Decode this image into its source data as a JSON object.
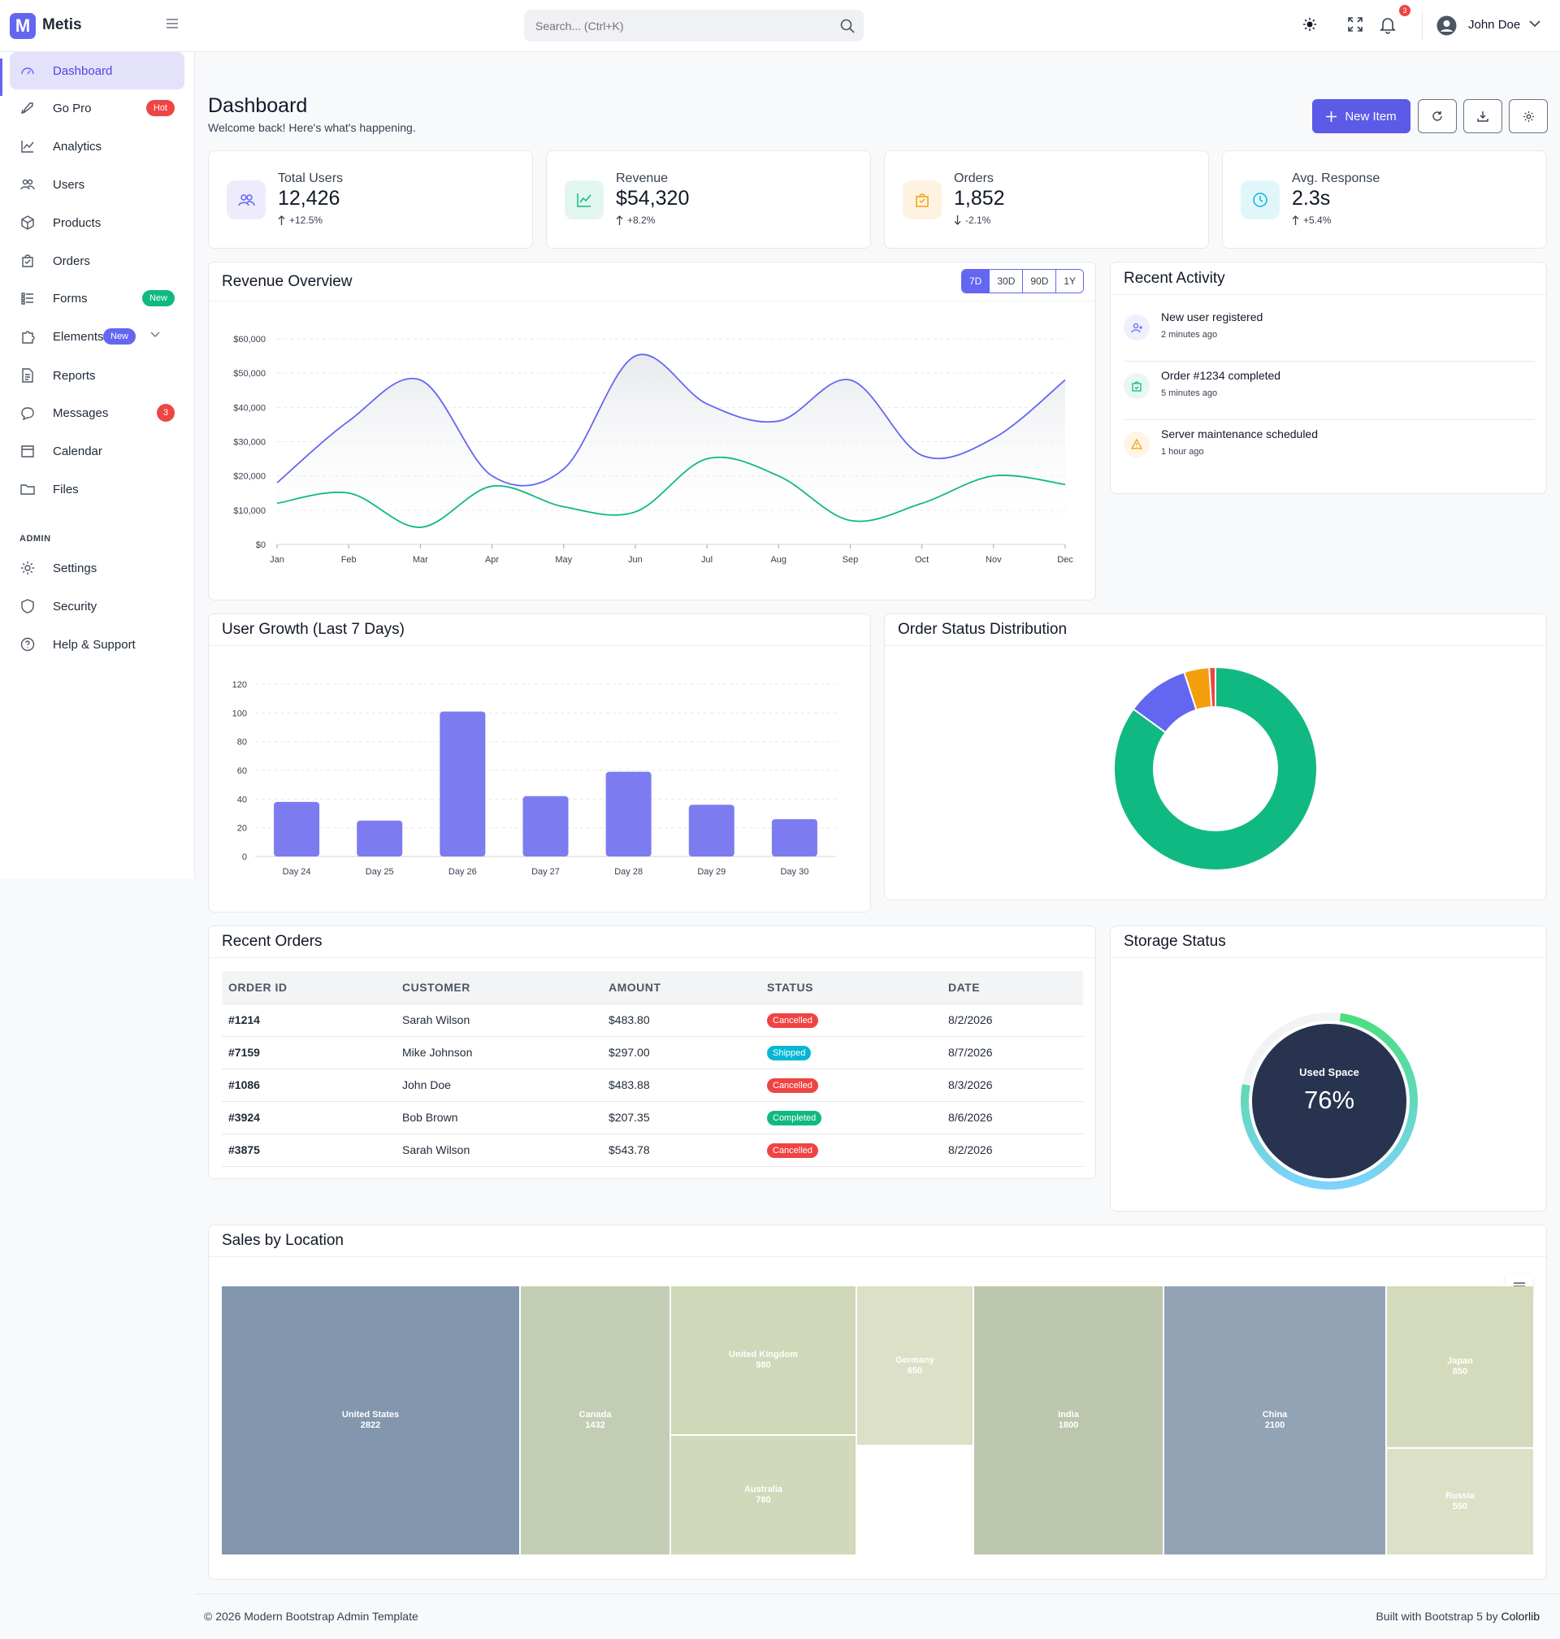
{
  "app": {
    "name": "Metis",
    "logo_letter": "M"
  },
  "search": {
    "placeholder": "Search... (Ctrl+K)"
  },
  "topbar": {
    "notification_count": "3",
    "user_name": "John Doe"
  },
  "sidebar": {
    "items": [
      {
        "label": "Dashboard",
        "icon": "dashboard-icon",
        "active": true
      },
      {
        "label": "Go Pro",
        "icon": "rocket-icon",
        "badge": "Hot"
      },
      {
        "label": "Analytics",
        "icon": "chart-line-icon"
      },
      {
        "label": "Users",
        "icon": "users-icon"
      },
      {
        "label": "Products",
        "icon": "box-icon"
      },
      {
        "label": "Orders",
        "icon": "bag-icon"
      },
      {
        "label": "Forms",
        "icon": "form-icon",
        "badge": "New"
      },
      {
        "label": "Elements",
        "icon": "puzzle-icon",
        "badge": "New"
      },
      {
        "label": "Reports",
        "icon": "document-icon"
      },
      {
        "label": "Messages",
        "icon": "chat-icon",
        "badge": "3"
      },
      {
        "label": "Calendar",
        "icon": "calendar-icon"
      },
      {
        "label": "Files",
        "icon": "folder-icon"
      }
    ],
    "admin_heading": "ADMIN",
    "admin_items": [
      {
        "label": "Settings",
        "icon": "gear-icon"
      },
      {
        "label": "Security",
        "icon": "shield-icon"
      },
      {
        "label": "Help & Support",
        "icon": "help-icon"
      }
    ]
  },
  "page": {
    "title": "Dashboard",
    "subtitle": "Welcome back! Here's what's happening.",
    "new_item_label": "New Item"
  },
  "stats": [
    {
      "label": "Total Users",
      "value": "12,426",
      "change": "+12.5%",
      "direction": "up",
      "color": "#6366f1"
    },
    {
      "label": "Revenue",
      "value": "$54,320",
      "change": "+8.2%",
      "direction": "up",
      "color": "#10b981"
    },
    {
      "label": "Orders",
      "value": "1,852",
      "change": "-2.1%",
      "direction": "down",
      "color": "#f59e0b"
    },
    {
      "label": "Avg. Response",
      "value": "2.3s",
      "change": "+5.4%",
      "direction": "up",
      "color": "#06b6d4"
    }
  ],
  "revenue": {
    "title": "Revenue Overview",
    "ranges": [
      "7D",
      "30D",
      "90D",
      "1Y"
    ],
    "active_range": "7D"
  },
  "activity": {
    "title": "Recent Activity",
    "items": [
      {
        "text": "New user registered",
        "time": "2 minutes ago",
        "color": "#6366f1"
      },
      {
        "text": "Order #1234 completed",
        "time": "5 minutes ago",
        "color": "#10b981"
      },
      {
        "text": "Server maintenance scheduled",
        "time": "1 hour ago",
        "color": "#f59e0b"
      }
    ]
  },
  "user_growth": {
    "title": "User Growth (Last 7 Days)"
  },
  "order_status": {
    "title": "Order Status Distribution"
  },
  "orders": {
    "title": "Recent Orders",
    "columns": [
      "ORDER ID",
      "CUSTOMER",
      "AMOUNT",
      "STATUS",
      "DATE"
    ],
    "rows": [
      {
        "id": "#1214",
        "customer": "Sarah Wilson",
        "amount": "$483.80",
        "status": "Cancelled",
        "date": "8/2/2026"
      },
      {
        "id": "#7159",
        "customer": "Mike Johnson",
        "amount": "$297.00",
        "status": "Shipped",
        "date": "8/7/2026"
      },
      {
        "id": "#1086",
        "customer": "John Doe",
        "amount": "$483.88",
        "status": "Cancelled",
        "date": "8/3/2026"
      },
      {
        "id": "#3924",
        "customer": "Bob Brown",
        "amount": "$207.35",
        "status": "Completed",
        "date": "8/6/2026"
      },
      {
        "id": "#3875",
        "customer": "Sarah Wilson",
        "amount": "$543.78",
        "status": "Cancelled",
        "date": "8/2/2026"
      }
    ],
    "status_colors": {
      "Cancelled": "#ef4444",
      "Shipped": "#06b6d4",
      "Completed": "#10b981"
    }
  },
  "storage": {
    "title": "Storage Status",
    "label": "Used Space",
    "value": "76%",
    "percent": 76
  },
  "location": {
    "title": "Sales by Location"
  },
  "footer": {
    "left": "© 2026 Modern Bootstrap Admin Template",
    "right_prefix": "Built with Bootstrap 5 by ",
    "right_link": "Colorlib"
  },
  "chart_data": [
    {
      "type": "line",
      "categories": [
        "Jan",
        "Feb",
        "Mar",
        "Apr",
        "May",
        "Jun",
        "Jul",
        "Aug",
        "Sep",
        "Oct",
        "Nov",
        "Dec"
      ],
      "series": [
        {
          "values": [
            18000,
            36000,
            48000,
            20000,
            22000,
            55000,
            41000,
            36000,
            48000,
            26000,
            31000,
            48000
          ],
          "color": "#6366f1"
        },
        {
          "values": [
            12000,
            15000,
            5000,
            17000,
            11000,
            9500,
            25000,
            20000,
            7000,
            12000,
            20000,
            17500
          ],
          "color": "#10b981"
        }
      ],
      "ylim": [
        0,
        60000
      ],
      "yticks": [
        "$0",
        "$10,000",
        "$20,000",
        "$30,000",
        "$40,000",
        "$50,000",
        "$60,000"
      ]
    },
    {
      "type": "bar",
      "categories": [
        "Day 24",
        "Day 25",
        "Day 26",
        "Day 27",
        "Day 28",
        "Day 29",
        "Day 30"
      ],
      "values": [
        38,
        25,
        101,
        42,
        59,
        36,
        26
      ],
      "ylim": [
        0,
        120
      ],
      "yticks": [
        "0",
        "20",
        "40",
        "60",
        "80",
        "100",
        "120"
      ],
      "color": "#7c7cf0"
    },
    {
      "type": "pie",
      "values": [
        85,
        10,
        4,
        1
      ],
      "colors": [
        "#10b981",
        "#6366f1",
        "#f59e0b",
        "#ef4444"
      ]
    },
    {
      "type": "treemap",
      "items": [
        {
          "name": "United States",
          "value": 2822,
          "color": "#8296ae"
        },
        {
          "name": "Canada",
          "value": 1432,
          "color": "#c3cdb4"
        },
        {
          "name": "United Kingdom",
          "value": 980,
          "color": "#cfd8b8"
        },
        {
          "name": "Australia",
          "value": 780,
          "color": "#d0d9b9"
        },
        {
          "name": "Germany",
          "value": 650,
          "color": "#dbe0c7"
        },
        {
          "name": "India",
          "value": 1800,
          "color": "#bcc6ac"
        },
        {
          "name": "China",
          "value": 2100,
          "color": "#92a3b6"
        },
        {
          "name": "Japan",
          "value": 850,
          "color": "#d4dbbc"
        },
        {
          "name": "Russia",
          "value": 550,
          "color": "#dbe0c7"
        }
      ]
    }
  ]
}
